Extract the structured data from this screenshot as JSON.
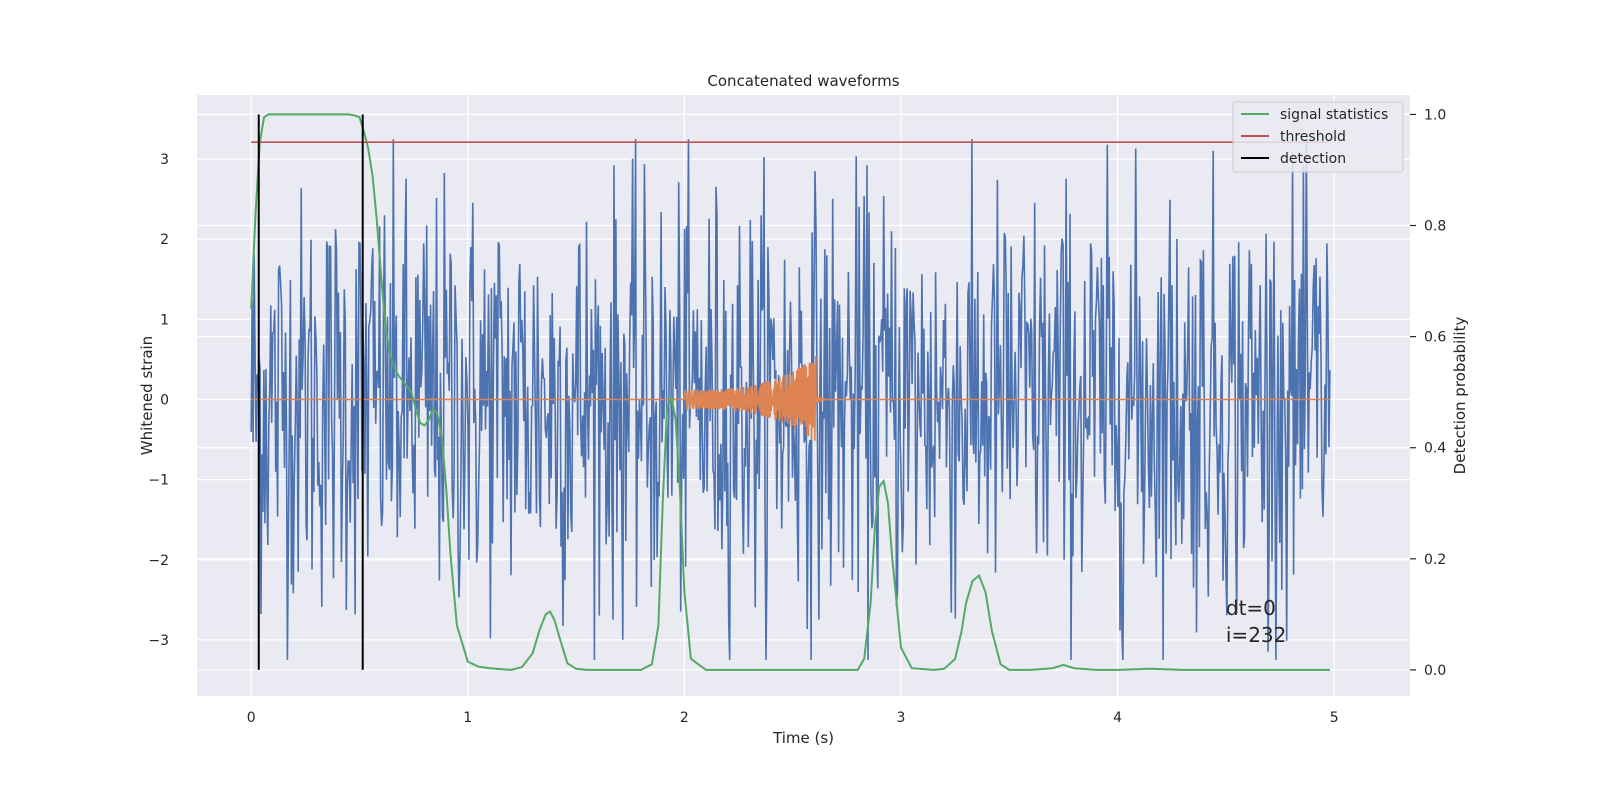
{
  "chart_data": {
    "type": "line",
    "title": "Concatenated waveforms",
    "xlabel": "Time (s)",
    "ylabel": "Whitened strain",
    "y2label": "Detection probability",
    "xlim": [
      -0.25,
      5.35
    ],
    "ylim": [
      -3.7,
      3.8
    ],
    "y2lim": [
      -0.047,
      1.035
    ],
    "xticks": [
      0,
      1,
      2,
      3,
      4,
      5
    ],
    "yticks": [
      -3,
      -2,
      -1,
      0,
      1,
      2,
      3
    ],
    "y2ticks": [
      0.0,
      0.2,
      0.4,
      0.6,
      0.8,
      1.0
    ],
    "xtick_labels": [
      "0",
      "1",
      "2",
      "3",
      "4",
      "5"
    ],
    "ytick_labels": [
      "−3",
      "−2",
      "−1",
      "0",
      "1",
      "2",
      "3"
    ],
    "y2tick_labels": [
      "0.0",
      "0.2",
      "0.4",
      "0.6",
      "0.8",
      "1.0"
    ],
    "grid": true,
    "background": "#eaeaf2",
    "legend_position": "top-right",
    "series": [
      {
        "name": "",
        "kind": "noise",
        "color": "#4c72b0",
        "x_range": [
          0,
          4.98
        ],
        "envelope": 1.3,
        "spike_max": 3.25
      },
      {
        "name": "",
        "kind": "chirp",
        "color": "#dd8452",
        "x_range": [
          0,
          4.98
        ],
        "chirp_start": 2.0,
        "chirp_end": 2.61,
        "amp_start": 0.12,
        "amp_end": 0.55
      },
      {
        "name": "signal statistics",
        "color": "#55a868",
        "axis": "right",
        "x": [
          0.0,
          0.02,
          0.04,
          0.06,
          0.08,
          0.1,
          0.15,
          0.2,
          0.3,
          0.4,
          0.45,
          0.48,
          0.5,
          0.52,
          0.54,
          0.56,
          0.58,
          0.6,
          0.62,
          0.64,
          0.66,
          0.68,
          0.7,
          0.72,
          0.74,
          0.76,
          0.78,
          0.8,
          0.82,
          0.84,
          0.86,
          0.88,
          0.9,
          0.92,
          0.95,
          1.0,
          1.05,
          1.1,
          1.2,
          1.25,
          1.3,
          1.33,
          1.36,
          1.38,
          1.4,
          1.43,
          1.46,
          1.5,
          1.55,
          1.6,
          1.7,
          1.8,
          1.85,
          1.88,
          1.9,
          1.92,
          1.94,
          1.96,
          1.98,
          2.0,
          2.03,
          2.1,
          2.3,
          2.6,
          2.8,
          2.83,
          2.86,
          2.88,
          2.9,
          2.92,
          2.94,
          2.96,
          3.0,
          3.05,
          3.15,
          3.2,
          3.25,
          3.28,
          3.3,
          3.33,
          3.36,
          3.39,
          3.42,
          3.46,
          3.5,
          3.6,
          3.7,
          3.75,
          3.8,
          3.9,
          4.0,
          4.15,
          4.3,
          4.6,
          4.98
        ],
        "values": [
          0.65,
          0.82,
          0.95,
          0.995,
          1.0,
          1.0,
          1.0,
          1.0,
          1.0,
          1.0,
          1.0,
          0.998,
          0.995,
          0.97,
          0.94,
          0.89,
          0.81,
          0.71,
          0.62,
          0.57,
          0.545,
          0.53,
          0.52,
          0.51,
          0.5,
          0.47,
          0.445,
          0.44,
          0.45,
          0.47,
          0.46,
          0.42,
          0.33,
          0.21,
          0.08,
          0.015,
          0.006,
          0.003,
          0.0,
          0.005,
          0.03,
          0.07,
          0.1,
          0.105,
          0.09,
          0.05,
          0.012,
          0.002,
          0.0,
          0.0,
          0.0,
          0.0,
          0.01,
          0.08,
          0.3,
          0.47,
          0.49,
          0.45,
          0.32,
          0.14,
          0.02,
          0.0,
          0.0,
          0.0,
          0.0,
          0.02,
          0.12,
          0.26,
          0.33,
          0.34,
          0.3,
          0.2,
          0.04,
          0.003,
          0.0,
          0.002,
          0.02,
          0.07,
          0.12,
          0.16,
          0.17,
          0.14,
          0.07,
          0.01,
          0.0,
          0.0,
          0.003,
          0.009,
          0.003,
          0.0,
          0.0,
          0.002,
          0.0,
          0.0,
          0.0
        ]
      },
      {
        "name": "threshold",
        "color": "#c44e52",
        "axis": "right",
        "x": [
          0,
          4.98
        ],
        "values": [
          0.95,
          0.95
        ]
      },
      {
        "name": "detection",
        "color": "#000000",
        "axis": "right",
        "type": "vlines",
        "x": [
          0.035,
          0.515
        ],
        "y_range": [
          0.0,
          1.0
        ]
      }
    ],
    "annotation_lines": [
      "dt=0",
      "i=232"
    ]
  }
}
